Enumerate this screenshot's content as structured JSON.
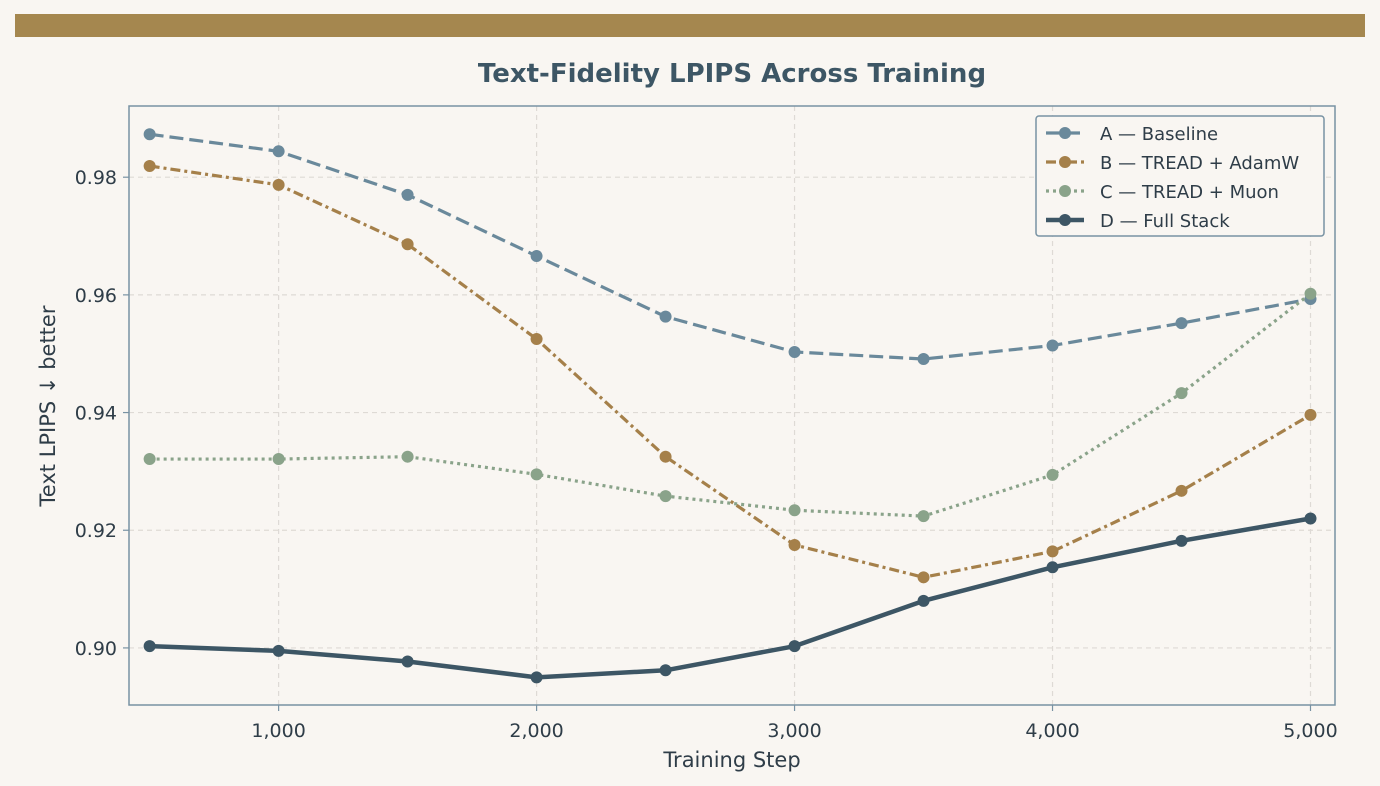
{
  "colors": {
    "background": "#f9f6f2",
    "top_bar": "#a5874f",
    "title": "#3d5665",
    "text": "#2f3d48",
    "axes_border": "#7892a3",
    "grid": "#dedad5"
  },
  "chart_data": {
    "type": "line",
    "title": "Text-Fidelity LPIPS Across Training",
    "xlabel": "Training Step",
    "ylabel": "Text LPIPS  ↓ better",
    "xlim": [
      420,
      5095
    ],
    "ylim": [
      0.8903,
      0.9921
    ],
    "xticks": [
      1000,
      2000,
      3000,
      4000,
      5000
    ],
    "xtick_labels": [
      "1,000",
      "2,000",
      "3,000",
      "4,000",
      "5,000"
    ],
    "yticks": [
      0.9,
      0.92,
      0.94,
      0.96,
      0.98
    ],
    "ytick_labels": [
      "0.90",
      "0.92",
      "0.94",
      "0.96",
      "0.98"
    ],
    "grid": true,
    "legend_position": "top-right",
    "x": [
      500,
      1000,
      1500,
      2000,
      2500,
      3000,
      3500,
      4000,
      4500,
      5000
    ],
    "series": [
      {
        "name": "A — Baseline",
        "color": "#6a899b",
        "style": "dashed",
        "values": [
          0.9873,
          0.9844,
          0.977,
          0.9666,
          0.9563,
          0.9503,
          0.9491,
          0.9514,
          0.9552,
          0.9593
        ]
      },
      {
        "name": "B — TREAD + AdamW",
        "color": "#a5804a",
        "style": "dashdot",
        "values": [
          0.9819,
          0.9787,
          0.9686,
          0.9525,
          0.9325,
          0.9175,
          0.912,
          0.9164,
          0.9267,
          0.9396
        ]
      },
      {
        "name": "C — TREAD + Muon",
        "color": "#8aa38a",
        "style": "dotted",
        "values": [
          0.9321,
          0.9321,
          0.9325,
          0.9295,
          0.9258,
          0.9234,
          0.9224,
          0.9294,
          0.9433,
          0.9602
        ]
      },
      {
        "name": "D — Full Stack",
        "color": "#3d5665",
        "style": "solid",
        "values": [
          0.9003,
          0.8995,
          0.8977,
          0.895,
          0.8962,
          0.9003,
          0.908,
          0.9137,
          0.9182,
          0.922
        ]
      }
    ]
  }
}
